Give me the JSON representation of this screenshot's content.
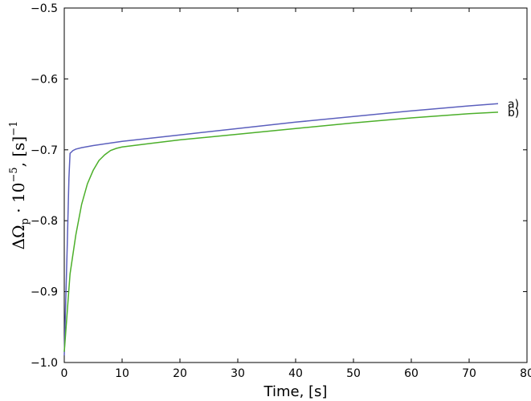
{
  "chart_data": {
    "type": "line",
    "title": "",
    "xlabel": "Time, [s]",
    "ylabel": {
      "parts": [
        "ΔΩ",
        "p",
        " · 10",
        "−5",
        ", [s]",
        "−1"
      ]
    },
    "xlim": [
      0,
      80
    ],
    "ylim": [
      -1.0,
      -0.5
    ],
    "xticks": [
      "0",
      "10",
      "20",
      "30",
      "40",
      "50",
      "60",
      "70",
      "80"
    ],
    "xtick_values": [
      0,
      10,
      20,
      30,
      40,
      50,
      60,
      70,
      80
    ],
    "yticks": [
      "−1.0",
      "−0.9",
      "−0.8",
      "−0.7",
      "−0.6",
      "−0.5"
    ],
    "ytick_values": [
      -1.0,
      -0.9,
      -0.8,
      -0.7,
      -0.6,
      -0.5
    ],
    "grid": false,
    "series": [
      {
        "name": "a)",
        "color": "#5b5fbd",
        "x": [
          0,
          0.2,
          0.5,
          0.8,
          1.0,
          1.5,
          2,
          3,
          5,
          10,
          20,
          30,
          40,
          50,
          60,
          70,
          75
        ],
        "y": [
          -0.99,
          -0.93,
          -0.84,
          -0.74,
          -0.705,
          -0.701,
          -0.699,
          -0.697,
          -0.694,
          -0.688,
          -0.679,
          -0.67,
          -0.661,
          -0.653,
          -0.645,
          -0.638,
          -0.635
        ]
      },
      {
        "name": "b)",
        "color": "#4caf2a",
        "x": [
          0,
          0.5,
          1,
          2,
          3,
          4,
          5,
          6,
          7,
          8,
          9,
          10,
          15,
          20,
          30,
          40,
          50,
          60,
          70,
          75
        ],
        "y": [
          -0.985,
          -0.93,
          -0.875,
          -0.82,
          -0.777,
          -0.748,
          -0.729,
          -0.715,
          -0.707,
          -0.701,
          -0.698,
          -0.696,
          -0.691,
          -0.686,
          -0.678,
          -0.67,
          -0.662,
          -0.655,
          -0.649,
          -0.647
        ]
      }
    ]
  }
}
